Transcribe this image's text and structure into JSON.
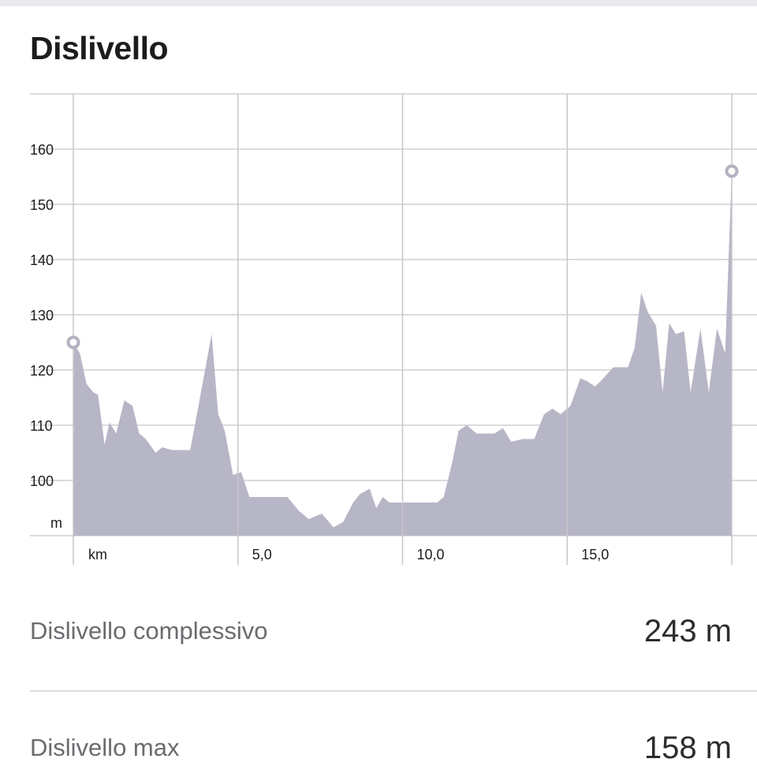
{
  "section": {
    "title": "Dislivello"
  },
  "chart_data": {
    "type": "area",
    "ylabel": "m",
    "xlabel": "km",
    "ylim": [
      90,
      170
    ],
    "xlim": [
      0,
      20
    ],
    "yticks": [
      160,
      150,
      140,
      130,
      120,
      110,
      100
    ],
    "ytick_labels": [
      "160",
      "150",
      "140",
      "130",
      "120",
      "110",
      "100"
    ],
    "xticks": [
      5,
      10,
      15
    ],
    "xtick_labels": [
      "5,0",
      "10,0",
      "15,0"
    ],
    "grid": true,
    "fill_color": "#b7b6c6",
    "marker_color": "#b3b2c1",
    "start": {
      "x": 0,
      "y": 125
    },
    "end": {
      "x": 20,
      "y": 156
    },
    "x": [
      0,
      0.2,
      0.4,
      0.6,
      0.75,
      0.95,
      1.1,
      1.3,
      1.55,
      1.8,
      2.0,
      2.2,
      2.5,
      2.7,
      3.0,
      3.15,
      3.55,
      3.8,
      4.2,
      4.4,
      4.6,
      4.85,
      5.1,
      5.35,
      5.65,
      5.9,
      6.2,
      6.5,
      6.85,
      7.15,
      7.55,
      7.9,
      8.2,
      8.5,
      8.7,
      9.0,
      9.2,
      9.4,
      9.6,
      9.9,
      10.2,
      10.5,
      10.8,
      11.05,
      11.25,
      11.5,
      11.7,
      11.95,
      12.25,
      12.55,
      12.8,
      13.05,
      13.3,
      13.65,
      14.0,
      14.3,
      14.55,
      14.8,
      15.1,
      15.4,
      15.6,
      15.85,
      16.1,
      16.4,
      16.6,
      16.85,
      17.05,
      17.25,
      17.45,
      17.7,
      17.9,
      18.1,
      18.3,
      18.55,
      18.75,
      19.05,
      19.3,
      19.55,
      19.8,
      20.0
    ],
    "y": [
      125,
      123,
      117.5,
      116,
      115.5,
      106.5,
      110.5,
      108.5,
      114.5,
      113.5,
      108.5,
      107.5,
      105,
      106,
      105.5,
      105.5,
      105.5,
      113.5,
      126.5,
      112,
      109,
      101,
      101.5,
      97,
      97,
      97,
      97,
      97,
      94.5,
      93,
      94,
      91.5,
      92.5,
      96,
      97.5,
      98.5,
      95,
      97,
      96,
      96,
      96,
      96,
      96,
      96,
      97,
      103,
      109,
      110,
      108.5,
      108.5,
      108.5,
      109.5,
      107,
      107.5,
      107.5,
      112,
      113,
      112,
      113.5,
      118.5,
      118,
      117,
      118.5,
      120.5,
      120.5,
      120.5,
      124,
      134,
      130.5,
      128,
      116,
      128.5,
      126.5,
      127,
      116,
      127.5,
      116,
      127.5,
      123,
      156
    ]
  },
  "stats": [
    {
      "label": "Dislivello complessivo",
      "value": "243 m"
    },
    {
      "label": "Dislivello max",
      "value": "158 m"
    }
  ]
}
